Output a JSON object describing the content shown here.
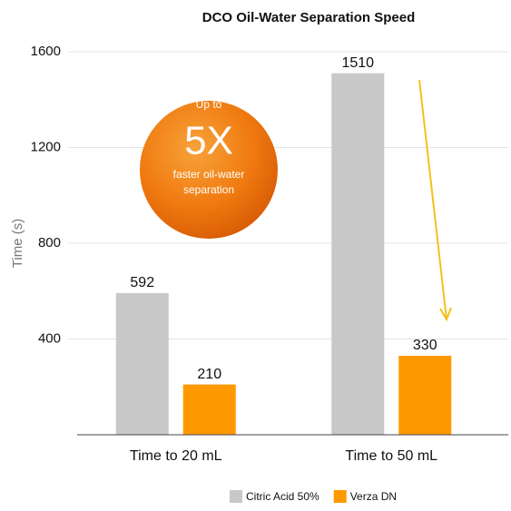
{
  "chart_data": {
    "type": "bar",
    "title": "DCO Oil-Water Separation Speed",
    "y_label": "Time (s)",
    "categories": [
      "Time to 20 mL",
      "Time to 50 mL"
    ],
    "series": [
      {
        "name": "Citric Acid 50%",
        "color": "#c8c8c8",
        "values": [
          592,
          1510
        ]
      },
      {
        "name": "Verza DN",
        "color": "#ff9900",
        "values": [
          210,
          330
        ]
      }
    ],
    "ylim": [
      0,
      1600
    ],
    "yticks": [
      400,
      800,
      1200,
      1600
    ],
    "grid": true,
    "annotations": [
      "Up to",
      "5X",
      "faster oil-water",
      "separation"
    ]
  }
}
